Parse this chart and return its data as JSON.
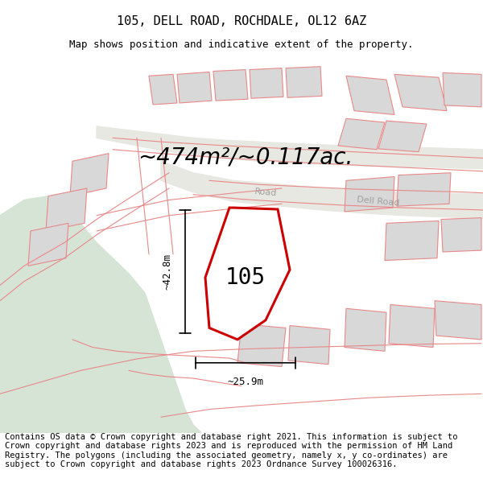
{
  "title": "105, DELL ROAD, ROCHDALE, OL12 6AZ",
  "subtitle": "Map shows position and indicative extent of the property.",
  "area_text": "~474m²/~0.117ac.",
  "label_105": "105",
  "dim_height": "~42.8m",
  "dim_width": "~25.9m",
  "road_label1": "Road",
  "road_label2": "Dell Road",
  "footer_text": "Contains OS data © Crown copyright and database right 2021. This information is subject to Crown copyright and database rights 2023 and is reproduced with the permission of HM Land Registry. The polygons (including the associated geometry, namely x, y co-ordinates) are subject to Crown copyright and database rights 2023 Ordnance Survey 100026316.",
  "bg_color": "#f5f5f0",
  "map_bg": "#f0f0eb",
  "green_area": "#d6e4d6",
  "road_color": "#e8e8e8",
  "plot_outline_color": "#cc0000",
  "building_fill": "#d8d8d8",
  "building_outline": "#e88888",
  "road_line_color": "#e88888",
  "title_fontsize": 11,
  "subtitle_fontsize": 9,
  "footer_fontsize": 7.5
}
